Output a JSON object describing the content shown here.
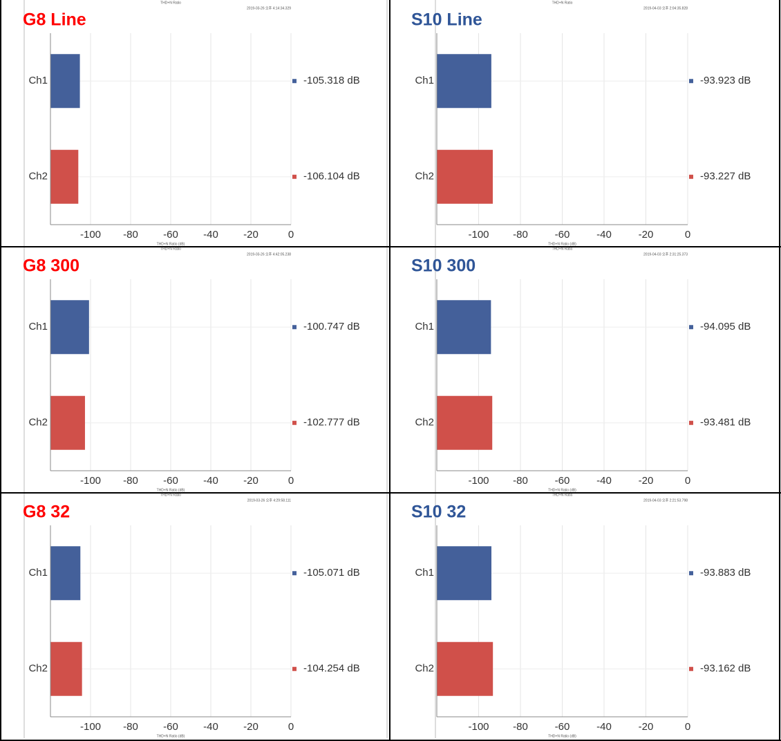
{
  "chart_data": [
    {
      "type": "bar",
      "orientation": "horizontal",
      "title": "G8 Line",
      "title_color": "#ff0000",
      "subtitle": "THD+N Ratio",
      "timestamp": "2019-03-26 오후 4:14:34.329",
      "x_label": "THD+N Ratio (dB)",
      "categories": [
        "Ch1",
        "Ch2"
      ],
      "values": [
        -105.318,
        -106.104
      ],
      "value_labels": [
        "-105.318  dB",
        "-106.104  dB"
      ],
      "colors": [
        "#44609a",
        "#d0504a"
      ],
      "xlim": [
        -120,
        0
      ],
      "xticks": [
        -100,
        -80,
        -60,
        -40,
        -20,
        0
      ],
      "grid": true
    },
    {
      "type": "bar",
      "orientation": "horizontal",
      "title": "S10 Line",
      "title_color": "#2f5597",
      "subtitle": "THD+N Ratio",
      "timestamp": "2019-04-03 오후 2:04:35.828",
      "x_label": "THD+N Ratio (dB)",
      "categories": [
        "Ch1",
        "Ch2"
      ],
      "values": [
        -93.923,
        -93.227
      ],
      "value_labels": [
        "-93.923  dB",
        "-93.227  dB"
      ],
      "colors": [
        "#44609a",
        "#d0504a"
      ],
      "xlim": [
        -120,
        0
      ],
      "xticks": [
        -100,
        -80,
        -60,
        -40,
        -20,
        0
      ],
      "grid": true
    },
    {
      "type": "bar",
      "orientation": "horizontal",
      "title": "G8 300",
      "title_color": "#ff0000",
      "subtitle": "THD+N Ratio",
      "timestamp": "2019-03-26 오후 4:42:05.238",
      "x_label": "THD+N Ratio (dB)",
      "categories": [
        "Ch1",
        "Ch2"
      ],
      "values": [
        -100.747,
        -102.777
      ],
      "value_labels": [
        "-100.747  dB",
        "-102.777  dB"
      ],
      "colors": [
        "#44609a",
        "#d0504a"
      ],
      "xlim": [
        -120,
        0
      ],
      "xticks": [
        -100,
        -80,
        -60,
        -40,
        -20,
        0
      ],
      "grid": true
    },
    {
      "type": "bar",
      "orientation": "horizontal",
      "title": "S10 300",
      "title_color": "#2f5597",
      "subtitle": "THD+N Ratio",
      "timestamp": "2019-04-03 오후 2:31:25.373",
      "x_label": "THD+N Ratio (dB)",
      "categories": [
        "Ch1",
        "Ch2"
      ],
      "values": [
        -94.095,
        -93.481
      ],
      "value_labels": [
        "-94.095  dB",
        "-93.481  dB"
      ],
      "colors": [
        "#44609a",
        "#d0504a"
      ],
      "xlim": [
        -120,
        0
      ],
      "xticks": [
        -100,
        -80,
        -60,
        -40,
        -20,
        0
      ],
      "grid": true
    },
    {
      "type": "bar",
      "orientation": "horizontal",
      "title": "G8 32",
      "title_color": "#ff0000",
      "subtitle": "THD+N Ratio",
      "timestamp": "2019-03-26 오후 4:29:58.111",
      "x_label": "THD+N Ratio (dB)",
      "categories": [
        "Ch1",
        "Ch2"
      ],
      "values": [
        -105.071,
        -104.254
      ],
      "value_labels": [
        "-105.071  dB",
        "-104.254  dB"
      ],
      "colors": [
        "#44609a",
        "#d0504a"
      ],
      "xlim": [
        -120,
        0
      ],
      "xticks": [
        -100,
        -80,
        -60,
        -40,
        -20,
        0
      ],
      "grid": true
    },
    {
      "type": "bar",
      "orientation": "horizontal",
      "title": "S10 32",
      "title_color": "#2f5597",
      "subtitle": "THD+N Ratio",
      "timestamp": "2019-04-03 오후 2:21:53.798",
      "x_label": "THD+N Ratio (dB)",
      "categories": [
        "Ch1",
        "Ch2"
      ],
      "values": [
        -93.883,
        -93.162
      ],
      "value_labels": [
        "-93.883  dB",
        "-93.162  dB"
      ],
      "colors": [
        "#44609a",
        "#d0504a"
      ],
      "xlim": [
        -120,
        0
      ],
      "xticks": [
        -100,
        -80,
        -60,
        -40,
        -20,
        0
      ],
      "grid": true
    }
  ]
}
